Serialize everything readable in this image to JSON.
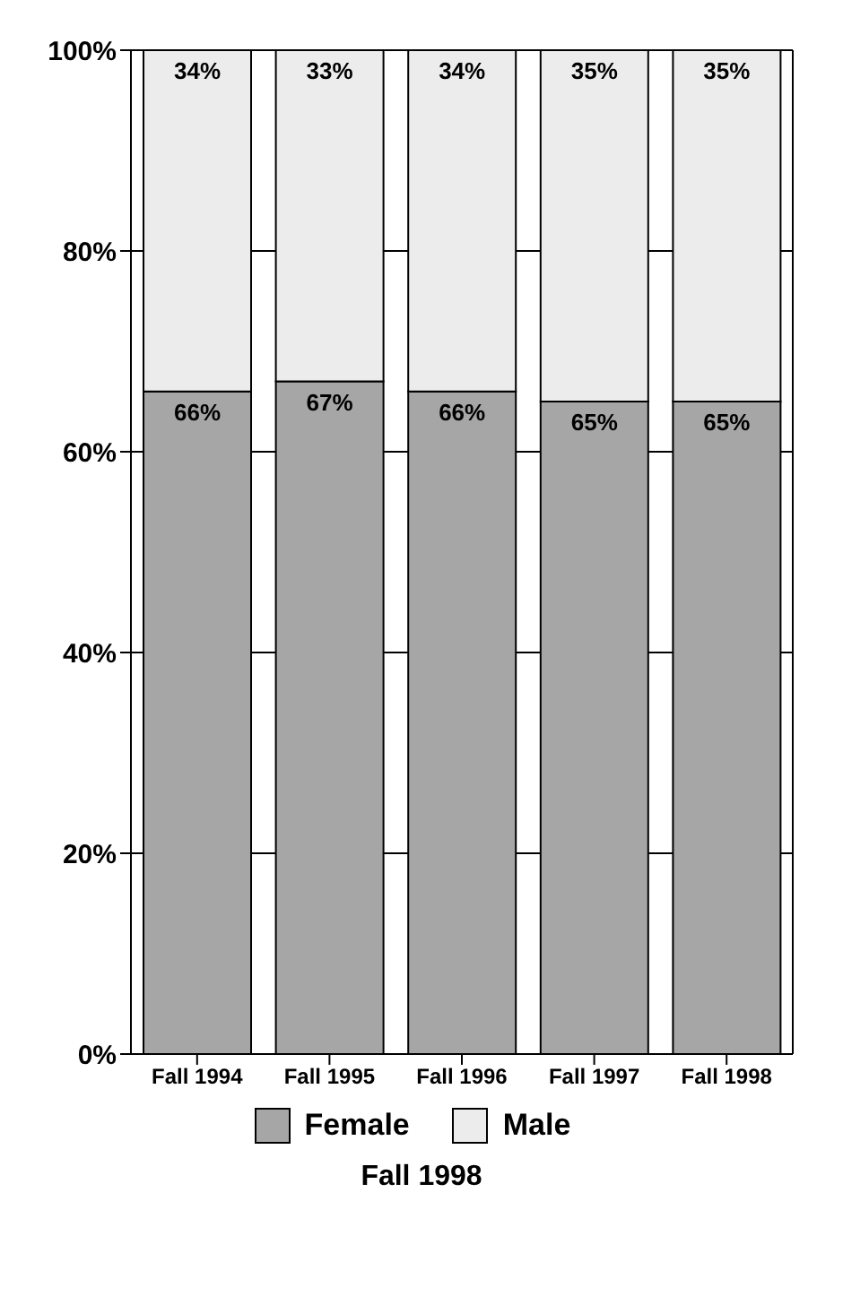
{
  "chart_data": {
    "type": "bar",
    "stacked": true,
    "categories": [
      "Fall 1994",
      "Fall 1995",
      "Fall 1996",
      "Fall 1997",
      "Fall 1998"
    ],
    "series": [
      {
        "name": "Female",
        "color": "#a6a6a6",
        "values": [
          66,
          67,
          66,
          65,
          65
        ],
        "value_labels": [
          "66%",
          "67%",
          "66%",
          "65%",
          "65%"
        ]
      },
      {
        "name": "Male",
        "color": "#ececec",
        "values": [
          34,
          33,
          34,
          35,
          35
        ],
        "value_labels": [
          "34%",
          "33%",
          "34%",
          "35%",
          "35%"
        ]
      }
    ],
    "ylim": [
      0,
      100
    ],
    "yticks": [
      {
        "value": 0,
        "label": "0%"
      },
      {
        "value": 20,
        "label": "20%"
      },
      {
        "value": 40,
        "label": "40%"
      },
      {
        "value": 60,
        "label": "60%"
      },
      {
        "value": 80,
        "label": "80%"
      },
      {
        "value": 100,
        "label": "100%"
      }
    ],
    "grid": true,
    "legend": "bottom",
    "annotations": [
      "Fall 1998"
    ]
  }
}
